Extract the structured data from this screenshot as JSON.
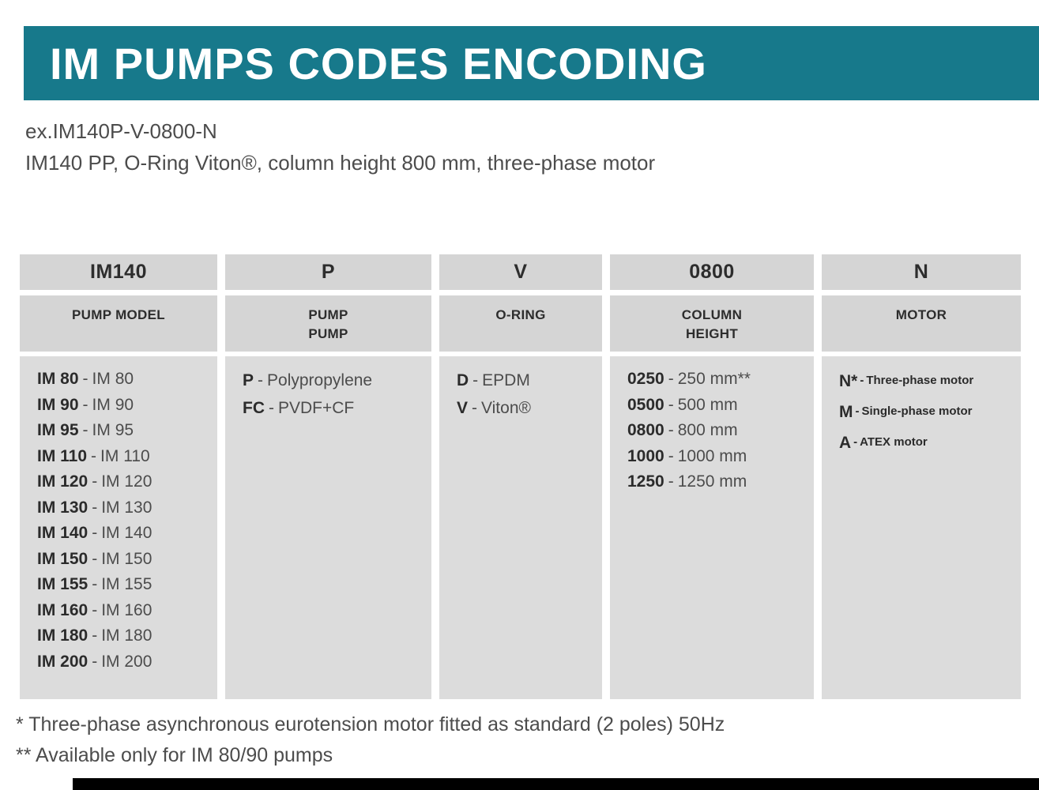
{
  "header": {
    "title": "IM PUMPS CODES ENCODING"
  },
  "example": {
    "line1": "ex.IM140P-V-0800-N",
    "line2": "IM140 PP, O-Ring Viton®, column height 800 mm, three-phase motor"
  },
  "table": {
    "separator": "-",
    "columns": [
      {
        "code": "IM140",
        "label": "PUMP MODEL",
        "entries": [
          {
            "code": "IM 80",
            "desc": "IM 80"
          },
          {
            "code": "IM 90",
            "desc": "IM 90"
          },
          {
            "code": "IM 95",
            "desc": "IM 95"
          },
          {
            "code": "IM 110",
            "desc": "IM 110"
          },
          {
            "code": "IM 120",
            "desc": "IM 120"
          },
          {
            "code": "IM 130",
            "desc": "IM 130"
          },
          {
            "code": "IM 140",
            "desc": "IM 140"
          },
          {
            "code": "IM 150",
            "desc": "IM 150"
          },
          {
            "code": "IM 155",
            "desc": "IM 155"
          },
          {
            "code": "IM 160",
            "desc": "IM 160"
          },
          {
            "code": "IM 180",
            "desc": "IM 180"
          },
          {
            "code": "IM 200",
            "desc": "IM 200"
          }
        ]
      },
      {
        "code": "P",
        "label": "PUMP\nPUMP",
        "entries": [
          {
            "code": "P",
            "desc": "Polypropylene"
          },
          {
            "code": "FC",
            "desc": "PVDF+CF"
          }
        ]
      },
      {
        "code": "V",
        "label": "O-RING",
        "entries": [
          {
            "code": "D",
            "desc": "EPDM"
          },
          {
            "code": "V",
            "desc": "Viton®"
          }
        ]
      },
      {
        "code": "0800",
        "label": "COLUMN\nHEIGHT",
        "entries": [
          {
            "code": "0250",
            "desc": "250 mm**"
          },
          {
            "code": "0500",
            "desc": "500 mm"
          },
          {
            "code": "0800",
            "desc": "800 mm"
          },
          {
            "code": "1000",
            "desc": "1000 mm"
          },
          {
            "code": "1250",
            "desc": "1250 mm"
          }
        ]
      },
      {
        "code": "N",
        "label": "MOTOR",
        "entries": [
          {
            "code": "N*",
            "desc": "Three-phase motor"
          },
          {
            "code": "M",
            "desc": "Single-phase motor"
          },
          {
            "code": "A",
            "desc": "ATEX motor"
          }
        ]
      }
    ]
  },
  "footnotes": {
    "line1": "* Three-phase asynchronous eurotension motor fitted as standard (2 poles) 50Hz",
    "line2": "** Available only for IM 80/90 pumps"
  },
  "colors": {
    "accent_teal": "#17798b",
    "header_gray": "#d5d5d5",
    "body_gray": "#dcdcdc"
  }
}
